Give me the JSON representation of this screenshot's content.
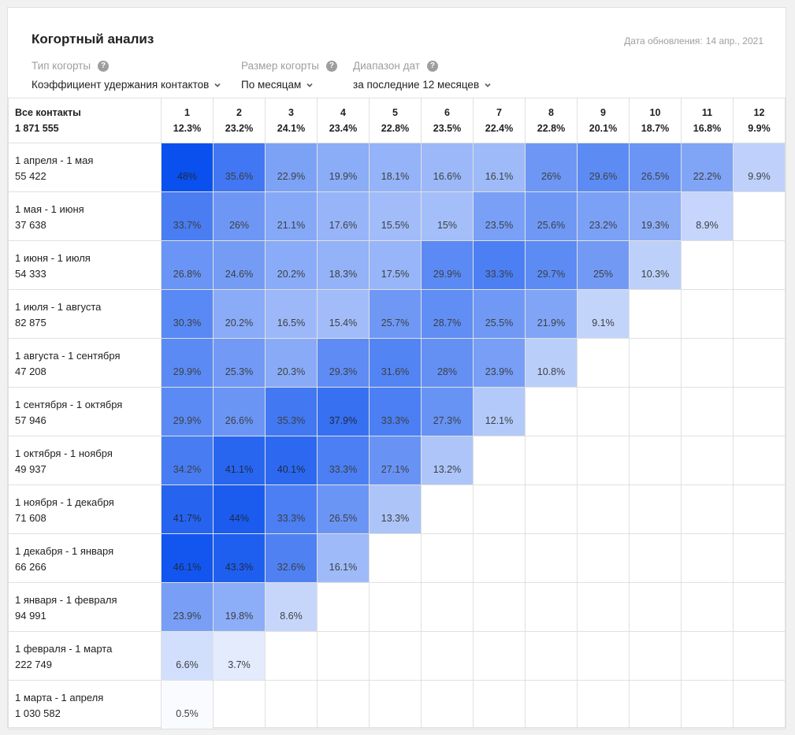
{
  "title": "Когортный анализ",
  "updated": {
    "label": "Дата обновления:",
    "value": "14 апр., 2021"
  },
  "filters": [
    {
      "label": "Тип когорты",
      "value": "Коэффициент удержания контактов"
    },
    {
      "label": "Размер когорты",
      "value": "По месяцам"
    },
    {
      "label": "Диапазон дат",
      "value": "за последние 12 месяцев"
    }
  ],
  "icons": {
    "help": "help-circle-icon",
    "dropdown": "chevron-down-icon"
  },
  "colors": {
    "max": "#0a50ee",
    "min": "#ffffff",
    "accent": "#1a56f0"
  },
  "table": {
    "corner": {
      "label": "Все контакты",
      "total": "1 871 555"
    },
    "columns": [
      {
        "n": "1",
        "pct": "12.3%"
      },
      {
        "n": "2",
        "pct": "23.2%"
      },
      {
        "n": "3",
        "pct": "24.1%"
      },
      {
        "n": "4",
        "pct": "23.4%"
      },
      {
        "n": "5",
        "pct": "22.8%"
      },
      {
        "n": "6",
        "pct": "23.5%"
      },
      {
        "n": "7",
        "pct": "22.4%"
      },
      {
        "n": "8",
        "pct": "22.8%"
      },
      {
        "n": "9",
        "pct": "20.1%"
      },
      {
        "n": "10",
        "pct": "18.7%"
      },
      {
        "n": "11",
        "pct": "16.8%"
      },
      {
        "n": "12",
        "pct": "9.9%"
      }
    ],
    "rows": [
      {
        "range": "1 апреля - 1 мая",
        "count": "55 422",
        "values": [
          "48%",
          "35.6%",
          "22.9%",
          "19.9%",
          "18.1%",
          "16.6%",
          "16.1%",
          "26%",
          "29.6%",
          "26.5%",
          "22.2%",
          "9.9%"
        ]
      },
      {
        "range": "1 мая - 1 июня",
        "count": "37 638",
        "values": [
          "33.7%",
          "26%",
          "21.1%",
          "17.6%",
          "15.5%",
          "15%",
          "23.5%",
          "25.6%",
          "23.2%",
          "19.3%",
          "8.9%"
        ]
      },
      {
        "range": "1 июня - 1 июля",
        "count": "54 333",
        "values": [
          "26.8%",
          "24.6%",
          "20.2%",
          "18.3%",
          "17.5%",
          "29.9%",
          "33.3%",
          "29.7%",
          "25%",
          "10.3%"
        ]
      },
      {
        "range": "1 июля - 1 августа",
        "count": "82 875",
        "values": [
          "30.3%",
          "20.2%",
          "16.5%",
          "15.4%",
          "25.7%",
          "28.7%",
          "25.5%",
          "21.9%",
          "9.1%"
        ]
      },
      {
        "range": "1 августа - 1 сентября",
        "count": "47 208",
        "values": [
          "29.9%",
          "25.3%",
          "20.3%",
          "29.3%",
          "31.6%",
          "28%",
          "23.9%",
          "10.8%"
        ]
      },
      {
        "range": "1 сентября - 1 октября",
        "count": "57 946",
        "values": [
          "29.9%",
          "26.6%",
          "35.3%",
          "37.9%",
          "33.3%",
          "27.3%",
          "12.1%"
        ]
      },
      {
        "range": "1 октября - 1 ноября",
        "count": "49 937",
        "values": [
          "34.2%",
          "41.1%",
          "40.1%",
          "33.3%",
          "27.1%",
          "13.2%"
        ]
      },
      {
        "range": "1 ноября - 1 декабря",
        "count": "71 608",
        "values": [
          "41.7%",
          "44%",
          "33.3%",
          "26.5%",
          "13.3%"
        ]
      },
      {
        "range": "1 декабря - 1 января",
        "count": "66 266",
        "values": [
          "46.1%",
          "43.3%",
          "32.6%",
          "16.1%"
        ]
      },
      {
        "range": "1 января - 1 февраля",
        "count": "94 991",
        "values": [
          "23.9%",
          "19.8%",
          "8.6%"
        ]
      },
      {
        "range": "1 февраля - 1 марта",
        "count": "222 749",
        "values": [
          "6.6%",
          "3.7%"
        ]
      },
      {
        "range": "1 марта - 1 апреля",
        "count": "1 030 582",
        "values": [
          "0.5%"
        ]
      }
    ]
  }
}
